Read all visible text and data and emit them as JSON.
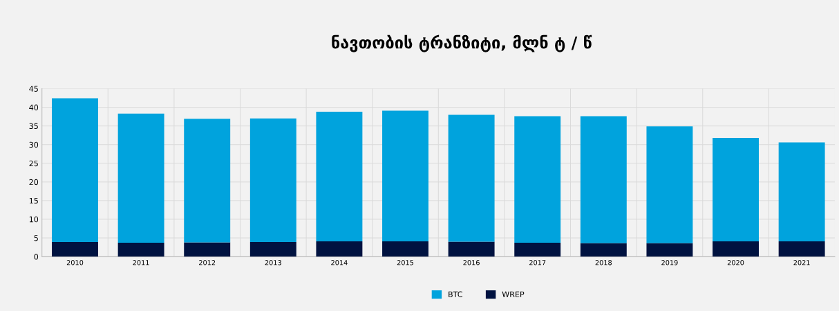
{
  "chart_data": {
    "type": "bar",
    "title": "ნავთობის ტრანზიტი, მლნ ტ / წ",
    "stacked": true,
    "categories": [
      "2010",
      "2011",
      "2012",
      "2013",
      "2014",
      "2015",
      "2016",
      "2017",
      "2018",
      "2019",
      "2020",
      "2021"
    ],
    "series": [
      {
        "name": "WREP",
        "color": "#001240",
        "values": [
          3.9,
          3.7,
          3.8,
          3.9,
          4.1,
          4.1,
          4.0,
          3.7,
          3.6,
          3.6,
          4.1,
          4.1
        ]
      },
      {
        "name": "BTC",
        "color": "#00a3dd",
        "values": [
          38.5,
          34.6,
          33.1,
          33.1,
          34.7,
          35.0,
          34.0,
          33.9,
          34.0,
          31.3,
          27.7,
          26.5
        ]
      }
    ],
    "ylim": [
      0,
      45
    ],
    "yticks": [
      0,
      5,
      10,
      15,
      20,
      25,
      30,
      35,
      40,
      45
    ],
    "grid": true,
    "legend": "bottom"
  }
}
